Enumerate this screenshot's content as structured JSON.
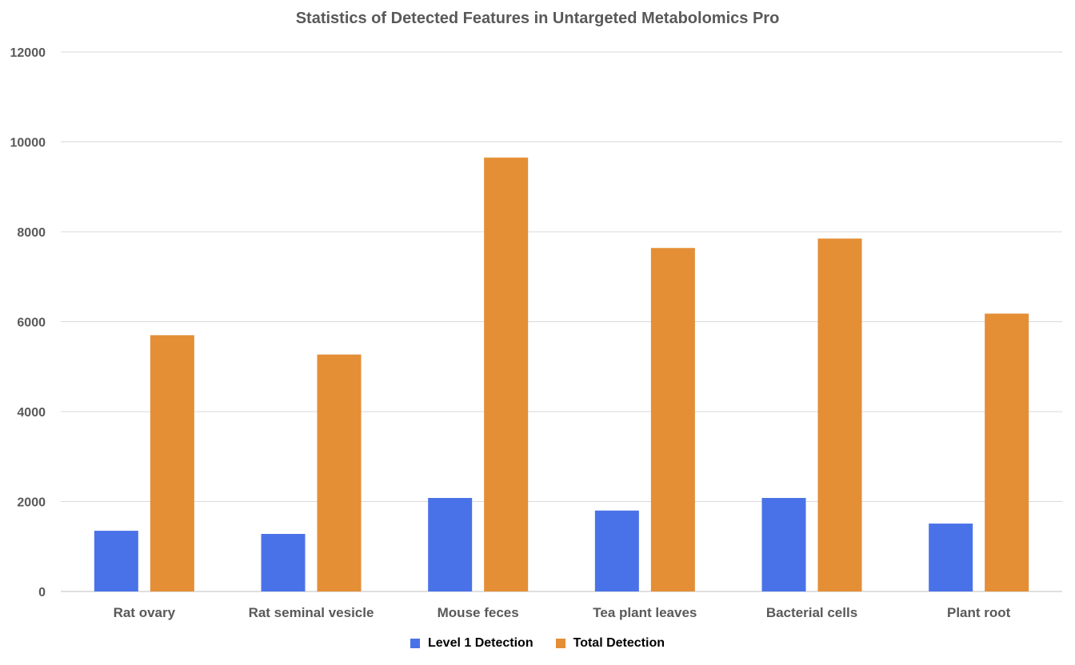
{
  "chart_data": {
    "type": "bar",
    "title": "Statistics of Detected Features in Untargeted Metabolomics Pro",
    "xlabel": "",
    "ylabel": "",
    "categories": [
      "Rat ovary",
      "Rat seminal vesicle",
      "Mouse feces",
      "Tea plant leaves",
      "Bacterial cells",
      "Plant root"
    ],
    "series": [
      {
        "name": "Level 1 Detection",
        "color": "#4A72E8",
        "values": [
          1350,
          1280,
          2080,
          1800,
          2080,
          1510
        ]
      },
      {
        "name": "Total Detection",
        "color": "#E48E36",
        "values": [
          5700,
          5270,
          9650,
          7640,
          7850,
          6180
        ]
      }
    ],
    "ylim": [
      0,
      12000
    ],
    "yticks": [
      0,
      2000,
      4000,
      6000,
      8000,
      10000,
      12000
    ],
    "grid": true,
    "legend_position": "bottom"
  }
}
